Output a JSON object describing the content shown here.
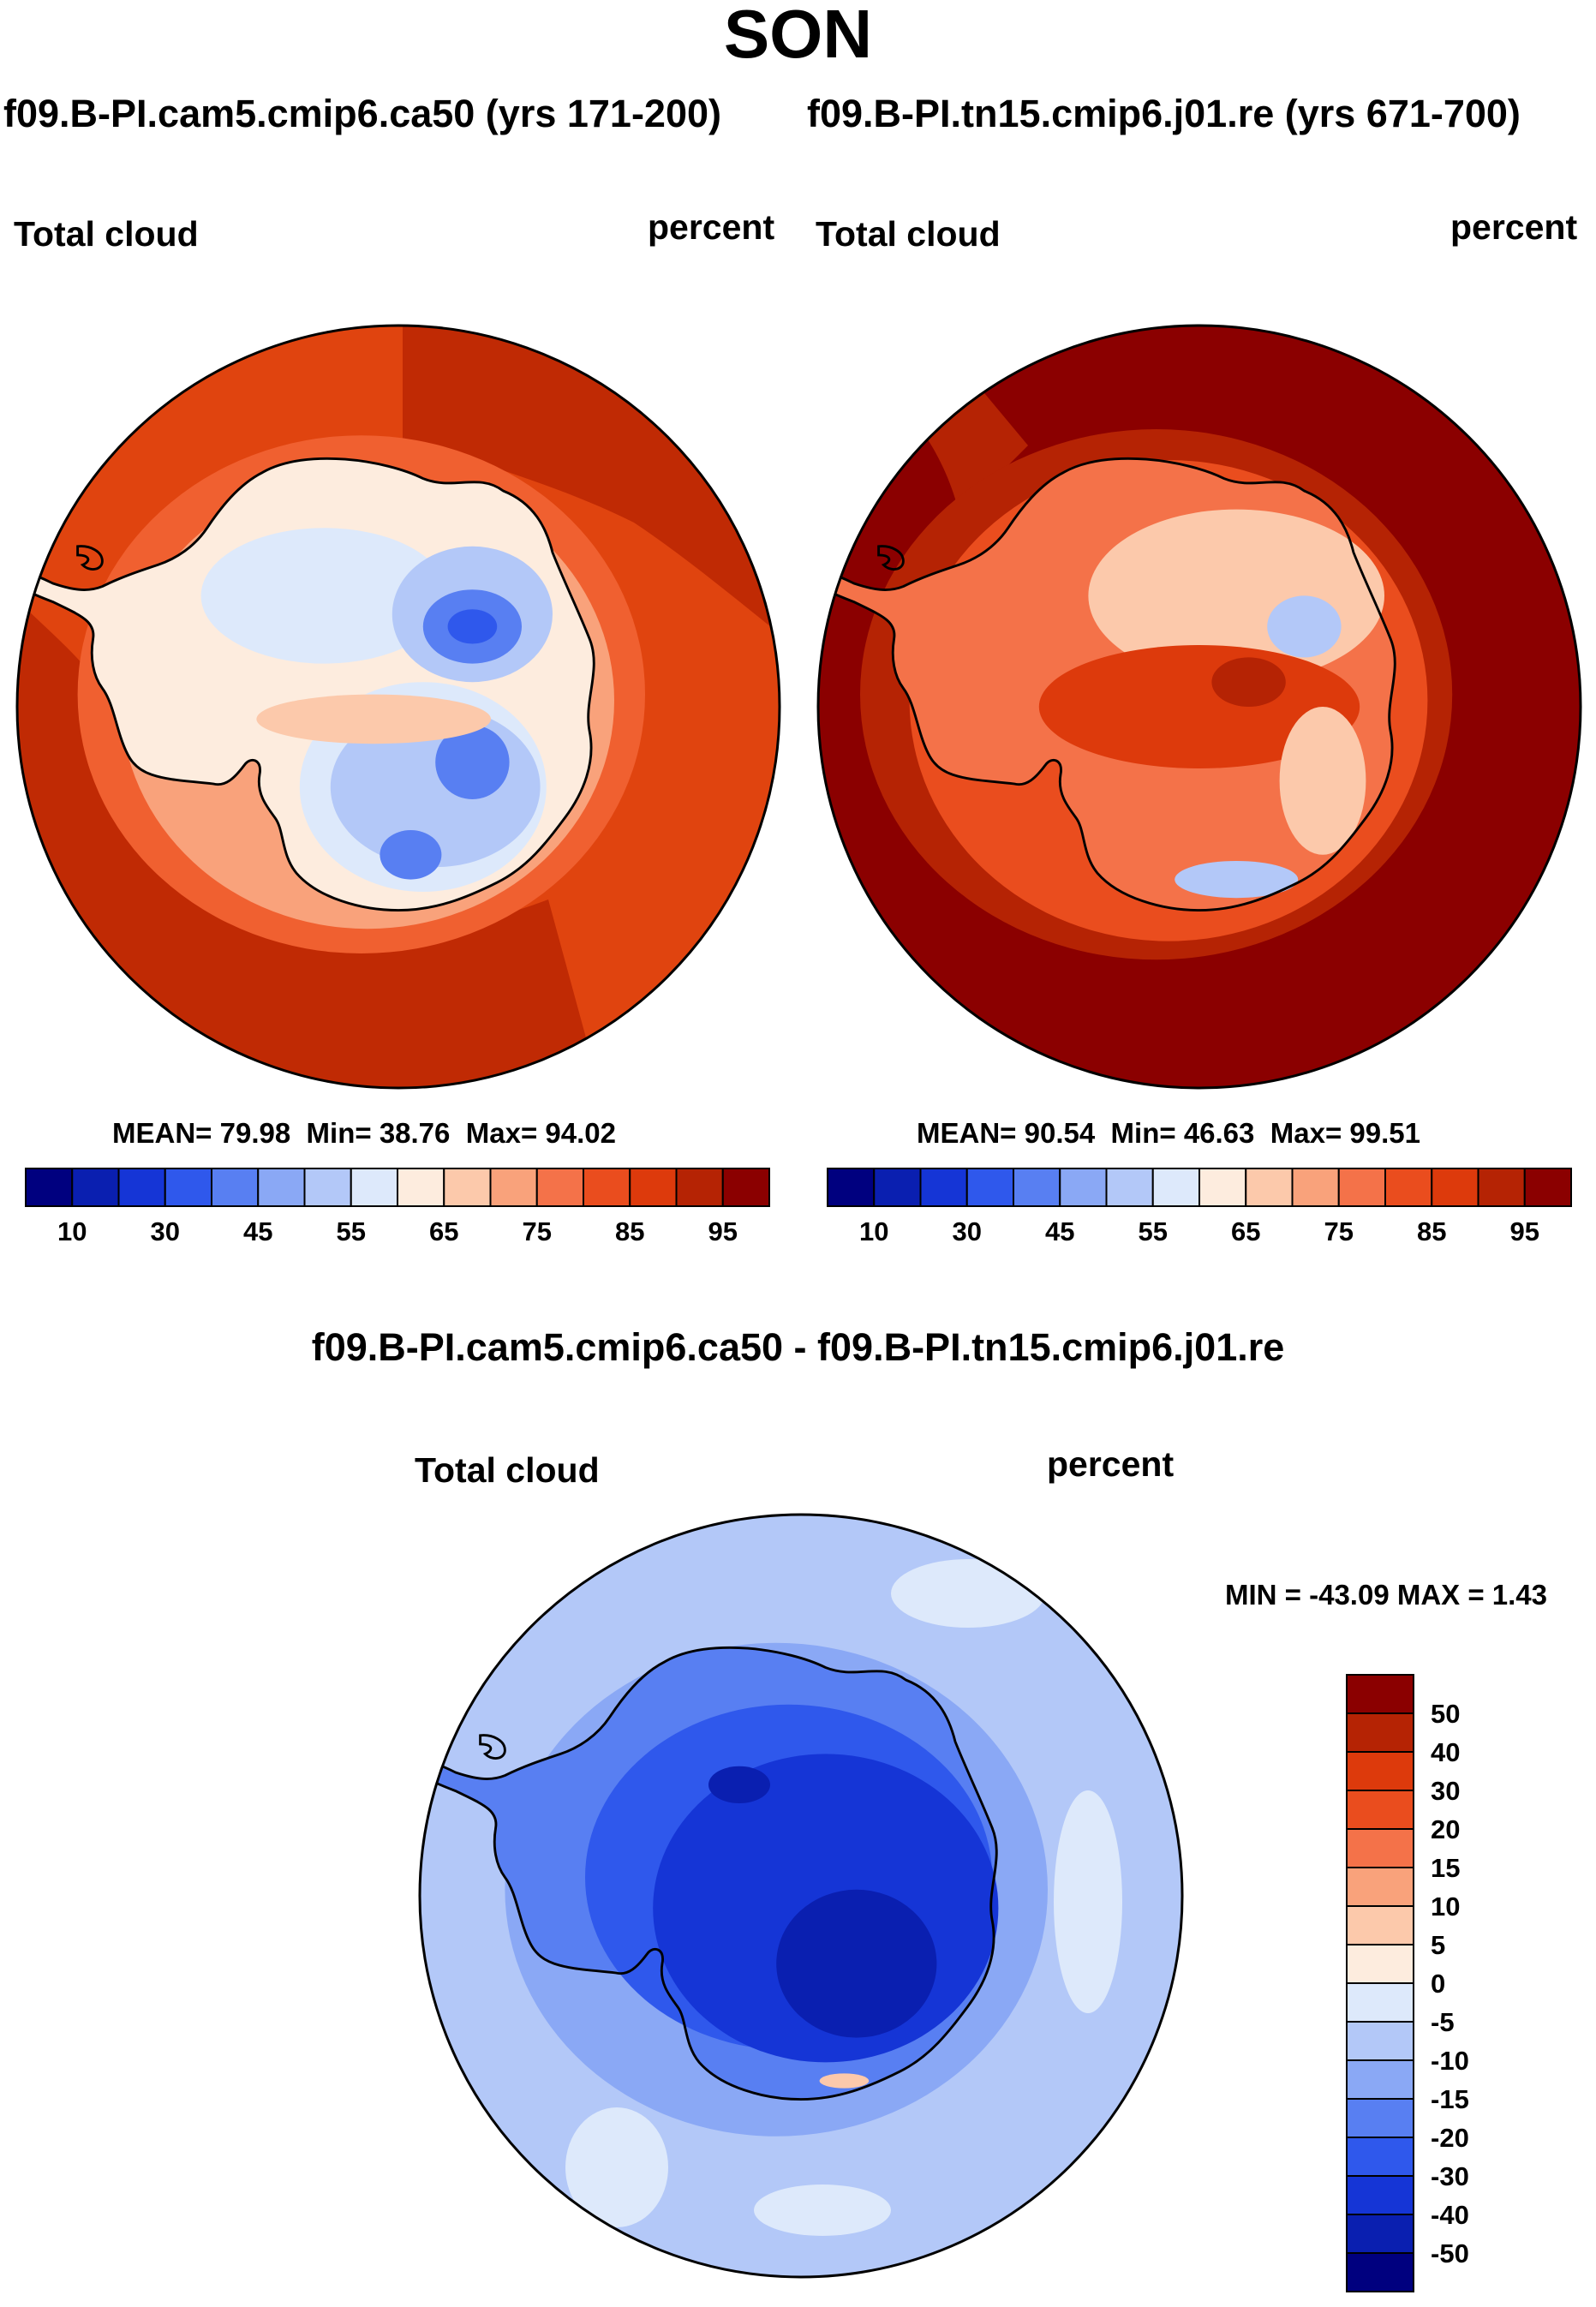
{
  "title": "SON",
  "colors": {
    "abs_levels": [
      "#00007f",
      "#0a1fb0",
      "#1535d6",
      "#2f58ec",
      "#587ff2",
      "#8aa8f5",
      "#b3c8f8",
      "#dde9fb",
      "#fdecde",
      "#fcc9ab",
      "#f9a27b",
      "#f47249",
      "#ea4d1e",
      "#dd3a0c",
      "#b52304",
      "#8b0000"
    ],
    "diff_levels": [
      "#00007f",
      "#0a1fb0",
      "#1535d6",
      "#2f58ec",
      "#587ff2",
      "#8aa8f5",
      "#b3c8f8",
      "#dde9fb",
      "#fdecde",
      "#fcc9ab",
      "#f9a27b",
      "#f47249",
      "#ea4d1e",
      "#dd3a0c",
      "#b52304",
      "#8b0000"
    ],
    "coastline": "#000000"
  },
  "panels": [
    {
      "case_title": "f09.B-PI.cam5.cmip6.ca50 (yrs 171-200)",
      "left_label": "Total cloud",
      "right_label": "percent",
      "stats": {
        "mean_label": "MEAN=",
        "mean": "79.98",
        "min_label": "Min=",
        "min": "38.76",
        "max_label": "Max=",
        "max": "94.02"
      }
    },
    {
      "case_title": "f09.B-PI.tn15.cmip6.j01.re (yrs 671-700)",
      "left_label": "Total cloud",
      "right_label": "percent",
      "stats": {
        "mean_label": "MEAN=",
        "mean": "90.54",
        "min_label": "Min=",
        "min": "46.63",
        "max_label": "Max=",
        "max": "99.51"
      }
    }
  ],
  "diff_panel": {
    "title": "f09.B-PI.cam5.cmip6.ca50 - f09.B-PI.tn15.cmip6.j01.re",
    "left_label": "Total cloud",
    "right_label": "percent",
    "min_max": "MIN = -43.09 MAX =   1.43"
  },
  "chart_data": [
    {
      "type": "heatmap",
      "title": "Total cloud",
      "case": "f09.B-PI.cam5.cmip6.ca50 (yrs 171-200)",
      "units": "percent",
      "projection": "south polar stereographic",
      "colorbar_ticks": [
        "10",
        "30",
        "45",
        "55",
        "65",
        "75",
        "85",
        "95"
      ],
      "colorbar_levels": [
        10,
        20,
        30,
        40,
        45,
        50,
        55,
        60,
        65,
        70,
        75,
        80,
        85,
        90,
        95
      ],
      "mean": 79.98,
      "min": 38.76,
      "max": 94.02
    },
    {
      "type": "heatmap",
      "title": "Total cloud",
      "case": "f09.B-PI.tn15.cmip6.j01.re (yrs 671-700)",
      "units": "percent",
      "projection": "south polar stereographic",
      "colorbar_ticks": [
        "10",
        "30",
        "45",
        "55",
        "65",
        "75",
        "85",
        "95"
      ],
      "colorbar_levels": [
        10,
        20,
        30,
        40,
        45,
        50,
        55,
        60,
        65,
        70,
        75,
        80,
        85,
        90,
        95
      ],
      "mean": 90.54,
      "min": 46.63,
      "max": 99.51
    },
    {
      "type": "heatmap",
      "title": "Total cloud",
      "case": "f09.B-PI.cam5.cmip6.ca50 - f09.B-PI.tn15.cmip6.j01.re",
      "units": "percent",
      "projection": "south polar stereographic",
      "colorbar_ticks": [
        "50",
        "40",
        "30",
        "20",
        "15",
        "10",
        "5",
        "0",
        "-5",
        "-10",
        "-15",
        "-20",
        "-30",
        "-40",
        "-50"
      ],
      "colorbar_levels": [
        -50,
        -40,
        -30,
        -20,
        -15,
        -10,
        -5,
        0,
        5,
        10,
        15,
        20,
        30,
        40,
        50
      ],
      "min": -43.09,
      "max": 1.43
    }
  ]
}
